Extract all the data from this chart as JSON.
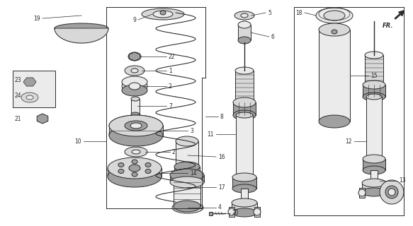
{
  "bg_color": "#ffffff",
  "line_color": "#2a2a2a",
  "gray_fill": "#d8d8d8",
  "dark_gray": "#a0a0a0",
  "light_gray": "#ebebeb",
  "figsize": [
    5.83,
    3.2
  ],
  "dpi": 100
}
